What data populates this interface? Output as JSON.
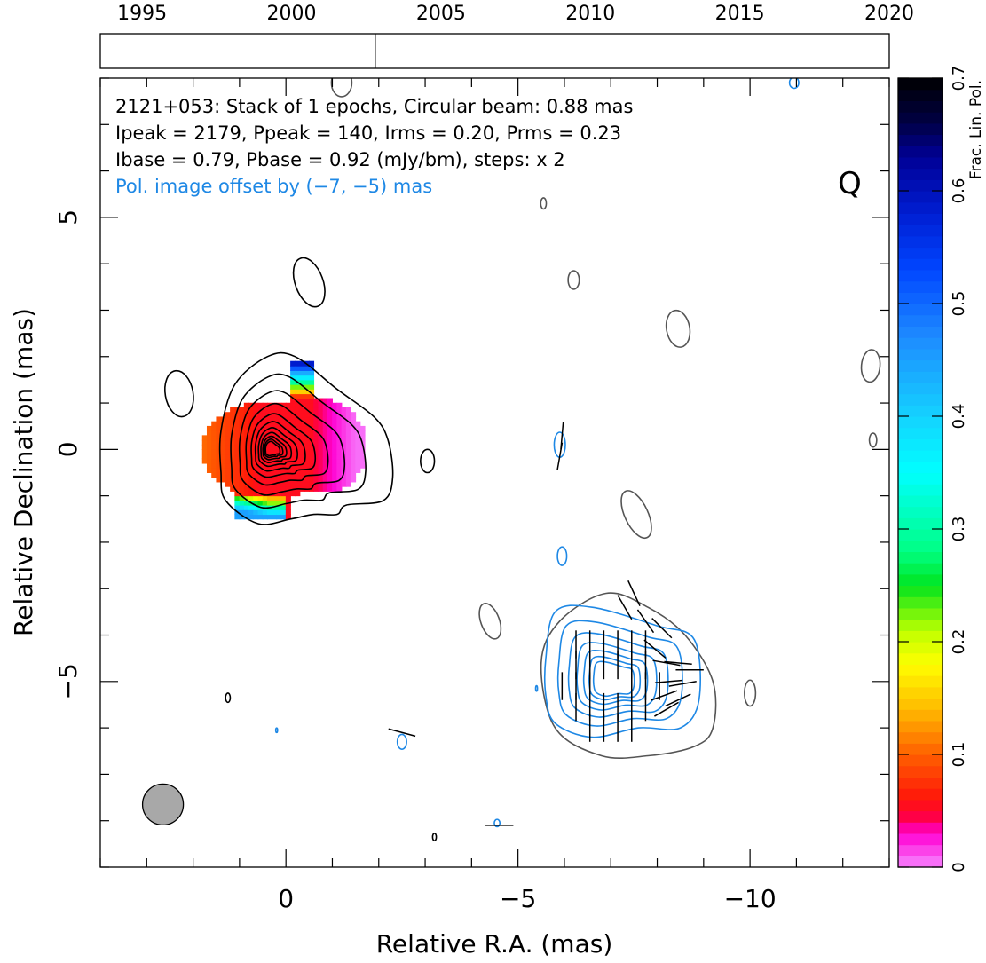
{
  "chart_data": {
    "type": "contour",
    "header_lines": [
      "2121+053: Stack of 1 epochs, Circular beam: 0.88 mas",
      "Ipeak = 2179, Ppeak = 140, Irms = 0.20, Prms = 0.23",
      "Ibase = 0.79, Pbase = 0.92 (mJy/bm), steps: x 2"
    ],
    "offset_note": "Pol. image offset by (−7, −5) mas",
    "band_label": "Q",
    "xlabel": "Relative R.A. (mas)",
    "ylabel": "Relative Declination (mas)",
    "xlim": [
      4,
      -13
    ],
    "ylim": [
      -9,
      8
    ],
    "x_ticks": [
      {
        "value": 0,
        "label": "0"
      },
      {
        "value": -5,
        "label": "−5"
      },
      {
        "value": -10,
        "label": "−10"
      }
    ],
    "y_ticks": [
      {
        "value": 5,
        "label": "5"
      },
      {
        "value": 0,
        "label": "0"
      },
      {
        "value": -5,
        "label": "−5"
      }
    ],
    "timeline": {
      "range": [
        1993.6,
        2020
      ],
      "ticks": [
        {
          "value": 1995,
          "label": "1995"
        },
        {
          "value": 2000,
          "label": "2000"
        },
        {
          "value": 2005,
          "label": "2005"
        },
        {
          "value": 2010,
          "label": "2010"
        },
        {
          "value": 2015,
          "label": "2015"
        },
        {
          "value": 2020,
          "label": "2020"
        }
      ],
      "epochs": [
        2002.8
      ]
    },
    "colorbar": {
      "label": "Frac. Lin. Pol.",
      "range": [
        0,
        0.7
      ],
      "ticks": [
        {
          "value": 0,
          "label": "0"
        },
        {
          "value": 0.1,
          "label": "0.1"
        },
        {
          "value": 0.2,
          "label": "0.2"
        },
        {
          "value": 0.3,
          "label": "0.3"
        },
        {
          "value": 0.4,
          "label": "0.4"
        },
        {
          "value": 0.5,
          "label": "0.5"
        },
        {
          "value": 0.6,
          "label": "0.6"
        },
        {
          "value": 0.7,
          "label": "0.7"
        }
      ]
    },
    "beam": {
      "ra": 2.65,
      "dec": -7.65,
      "diameter_mas": 0.88
    },
    "total_intensity_core": {
      "ra": 0,
      "dec": 0,
      "levels": 11
    },
    "pol_core_offset": {
      "ra": -7,
      "dec": -5
    },
    "colors": {
      "stokes_i": "#000000",
      "stokes_i_faint": "#555555",
      "polarization": "#1e88e5",
      "text_blue": "#1e88e5",
      "beam_fill": "#a8a8a8"
    }
  }
}
